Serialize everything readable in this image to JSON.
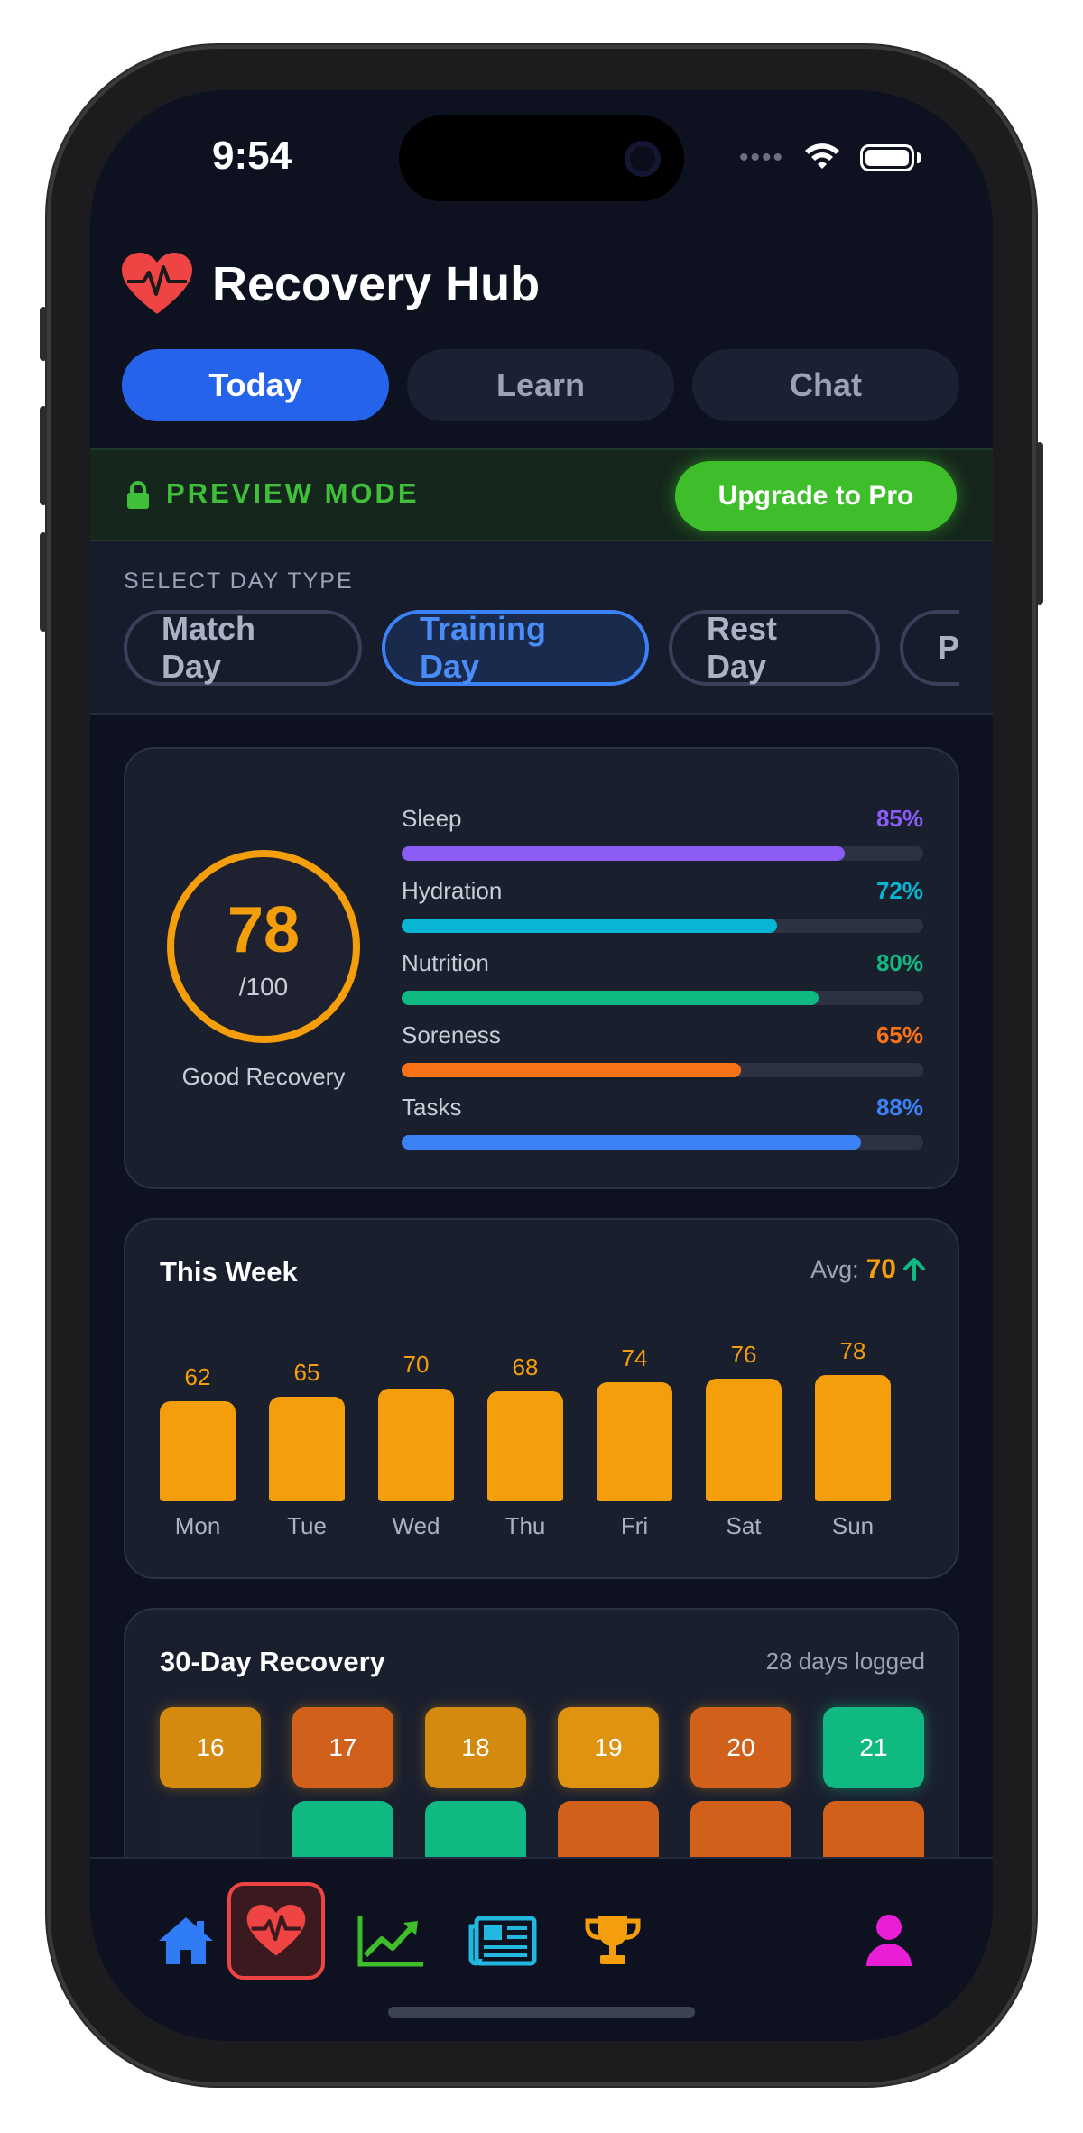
{
  "status_bar": {
    "time": "9:54"
  },
  "header": {
    "title": "Recovery Hub",
    "logo_icon": "heart-pulse-icon"
  },
  "tabs": [
    {
      "label": "Today",
      "active": true
    },
    {
      "label": "Learn",
      "active": false
    },
    {
      "label": "Chat",
      "active": false
    }
  ],
  "preview": {
    "label": "PREVIEW MODE",
    "upgrade_label": "Upgrade to Pro",
    "accent": "#3fbe2c"
  },
  "day_type": {
    "caption": "SELECT DAY TYPE",
    "options": [
      "Match Day",
      "Training Day",
      "Rest Day",
      "Pr"
    ],
    "selected": "Training Day"
  },
  "recovery": {
    "score": "78",
    "max": "/100",
    "status": "Good Recovery",
    "metrics": [
      {
        "name": "Sleep",
        "value": "85%",
        "fraction": 0.85,
        "color": "#8b5cf6"
      },
      {
        "name": "Hydration",
        "value": "72%",
        "fraction": 0.72,
        "color": "#06b6d4"
      },
      {
        "name": "Nutrition",
        "value": "80%",
        "fraction": 0.8,
        "color": "#10b981"
      },
      {
        "name": "Soreness",
        "value": "65%",
        "fraction": 0.65,
        "color": "#f97316"
      },
      {
        "name": "Tasks",
        "value": "88%",
        "fraction": 0.88,
        "color": "#3b82f6"
      }
    ]
  },
  "week": {
    "title": "This Week",
    "avg_label": "Avg:",
    "avg_value": "70",
    "trend_icon": "arrow-up-icon"
  },
  "chart_data": {
    "type": "bar",
    "categories": [
      "Mon",
      "Tue",
      "Wed",
      "Thu",
      "Fri",
      "Sat",
      "Sun"
    ],
    "values": [
      62,
      65,
      70,
      68,
      74,
      76,
      78
    ],
    "title": "This Week",
    "color": "#f59e0b"
  },
  "calendar": {
    "title": "30-Day Recovery",
    "subtitle": "28 days logged",
    "row1": [
      {
        "day": "16",
        "color": "#d4890f"
      },
      {
        "day": "17",
        "color": "#d1611a"
      },
      {
        "day": "18",
        "color": "#d4890f"
      },
      {
        "day": "19",
        "color": "#df9311"
      },
      {
        "day": "20",
        "color": "#d1611a"
      },
      {
        "day": "21",
        "color": "#10b981"
      }
    ],
    "row2_colors": [
      "#1c2130",
      "#10b981",
      "#10b981",
      "#d1611a",
      "#d1611a",
      "#d1611a"
    ]
  },
  "nav": [
    {
      "name": "home-icon",
      "color": "#2f7cf6",
      "active": false
    },
    {
      "name": "heart-pulse-icon",
      "color": "#ef4444",
      "active": true
    },
    {
      "name": "chart-line-icon",
      "color": "#3fbe2c",
      "active": false
    },
    {
      "name": "newspaper-icon",
      "color": "#22b8e0",
      "active": false
    },
    {
      "name": "trophy-icon",
      "color": "#f59e0b",
      "active": false
    },
    {
      "name": "user-icon",
      "color": "#e91ed6",
      "active": false
    }
  ]
}
